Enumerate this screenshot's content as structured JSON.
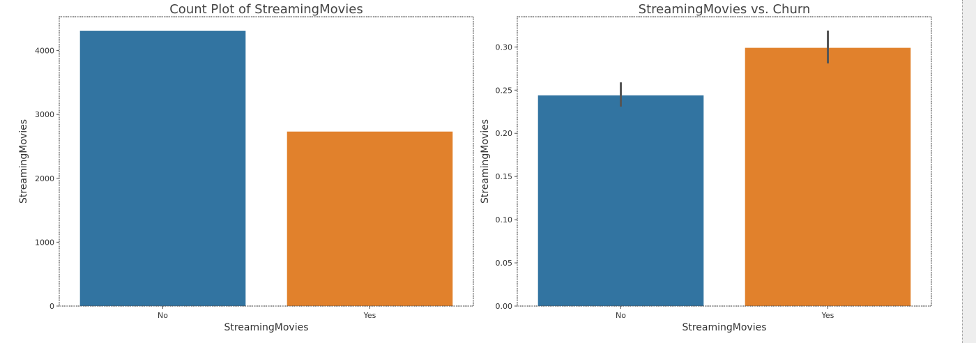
{
  "colors": {
    "no": "#3274a1",
    "yes": "#e1812c",
    "errorbar": "#555555"
  },
  "chart_data": [
    {
      "type": "bar",
      "title": "Count Plot of StreamingMovies",
      "xlabel": "StreamingMovies",
      "ylabel": "StreamingMovies",
      "categories": [
        "No",
        "Yes"
      ],
      "values": [
        4311,
        2732
      ],
      "ylim": [
        0,
        4530
      ],
      "yticks": [
        0,
        1000,
        2000,
        3000,
        4000
      ],
      "ytick_labels": [
        "0",
        "1000",
        "2000",
        "3000",
        "4000"
      ],
      "grid": false,
      "legend": "none"
    },
    {
      "type": "bar",
      "title": "StreamingMovies vs. Churn",
      "xlabel": "StreamingMovies",
      "ylabel": "StreamingMovies",
      "categories": [
        "No",
        "Yes"
      ],
      "values": [
        0.244,
        0.299
      ],
      "error_low": [
        0.231,
        0.281
      ],
      "error_high": [
        0.259,
        0.319
      ],
      "ylim": [
        0,
        0.335
      ],
      "yticks": [
        0,
        0.05,
        0.1,
        0.15,
        0.2,
        0.25,
        0.3
      ],
      "ytick_labels": [
        "0.00",
        "0.05",
        "0.10",
        "0.15",
        "0.20",
        "0.25",
        "0.30"
      ],
      "grid": false,
      "legend": "none"
    }
  ]
}
